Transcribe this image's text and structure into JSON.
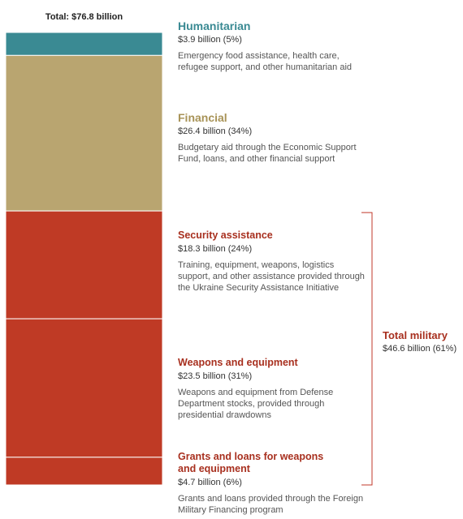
{
  "chart_data": {
    "type": "stacked-bar",
    "title": "Total: $76.8 billion",
    "ylim": [
      0,
      76.8
    ],
    "series": [
      {
        "name": "Humanitarian",
        "color": "#3a8a93",
        "label_color": "#3a8a93",
        "values": [
          3.9
        ],
        "value_labels": [
          "$3.9 billion (5%)"
        ],
        "description": "Emergency food assistance, health care, refugee support, and other humanitarian aid"
      },
      {
        "name": "Financial",
        "color": "#b9a570",
        "label_color": "#a89357",
        "values": [
          26.4
        ],
        "value_labels": [
          "$26.4 billion (34%)"
        ],
        "description": "Budgetary aid through the Economic Support Fund, loans, and other financial support"
      },
      {
        "name": "Security assistance",
        "color": "#bf3a25",
        "label_color": "#a8301f",
        "values": [
          18.3
        ],
        "value_labels": [
          "$18.3 billion (24%)"
        ],
        "description": "Training, equipment, weapons, logistics support, and other assistance provided through the Ukraine Security Assistance Initiative"
      },
      {
        "name": "Weapons and equipment",
        "color": "#bf3a25",
        "label_color": "#a8301f",
        "values": [
          23.5
        ],
        "value_labels": [
          "$23.5 billion (31%)"
        ],
        "description": "Weapons and equipment from Defense Department stocks, provided through presidential drawdowns"
      },
      {
        "name": "Grants and loans for weapons and equipment",
        "color": "#bf3a25",
        "label_color": "#a8301f",
        "values": [
          4.7
        ],
        "value_labels": [
          "$4.7 billion (6%)"
        ],
        "description": "Grants and loans provided through the Foreign Military Financing program"
      }
    ],
    "group": {
      "name": "Total military",
      "color": "#a8301f",
      "value": 46.6,
      "value_label": "$46.6 billion (61%)",
      "members": [
        2,
        3,
        4
      ]
    }
  }
}
